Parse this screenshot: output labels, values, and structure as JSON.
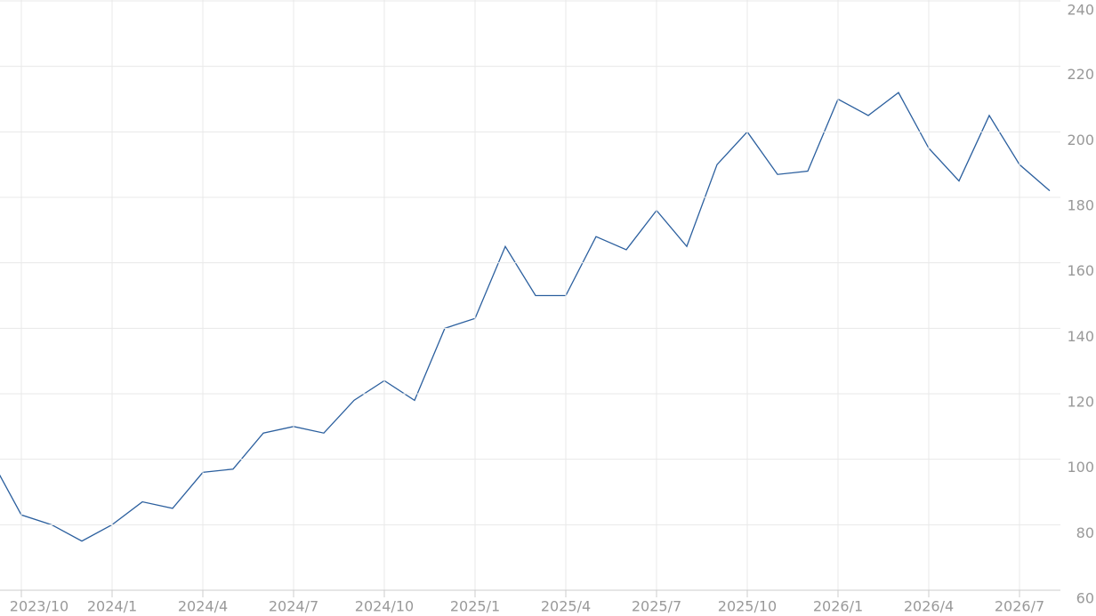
{
  "chart_data": {
    "type": "line",
    "x": [
      "2023/9",
      "2023/10",
      "2023/11",
      "2023/12",
      "2024/1",
      "2024/2",
      "2024/3",
      "2024/4",
      "2024/5",
      "2024/6",
      "2024/7",
      "2024/8",
      "2024/9",
      "2024/10",
      "2024/11",
      "2024/12",
      "2025/1",
      "2025/2",
      "2025/3",
      "2025/4",
      "2025/5",
      "2025/6",
      "2025/7",
      "2025/8",
      "2025/9",
      "2025/10",
      "2025/11",
      "2025/12",
      "2026/1",
      "2026/2",
      "2026/3",
      "2026/4",
      "2026/5",
      "2026/6",
      "2026/7",
      "2026/8"
    ],
    "series": [
      {
        "color": "#2b5f9e",
        "values": [
          100,
          83,
          80,
          75,
          80,
          87,
          85,
          96,
          97,
          108,
          110,
          108,
          118,
          124,
          118,
          140,
          143,
          165,
          150,
          150,
          168,
          164,
          176,
          165,
          190,
          200,
          187,
          188,
          210,
          205,
          212,
          195,
          185,
          205,
          190,
          182
        ]
      }
    ],
    "xticks": [
      "2023/10",
      "2024/1",
      "2024/4",
      "2024/7",
      "2024/10",
      "2025/1",
      "2025/4",
      "2025/7",
      "2025/10",
      "2026/1",
      "2026/4",
      "2026/7"
    ],
    "ylim": [
      60,
      240
    ],
    "yticks": [
      60,
      80,
      100,
      120,
      140,
      160,
      180,
      200,
      220,
      240
    ],
    "grid": true
  }
}
